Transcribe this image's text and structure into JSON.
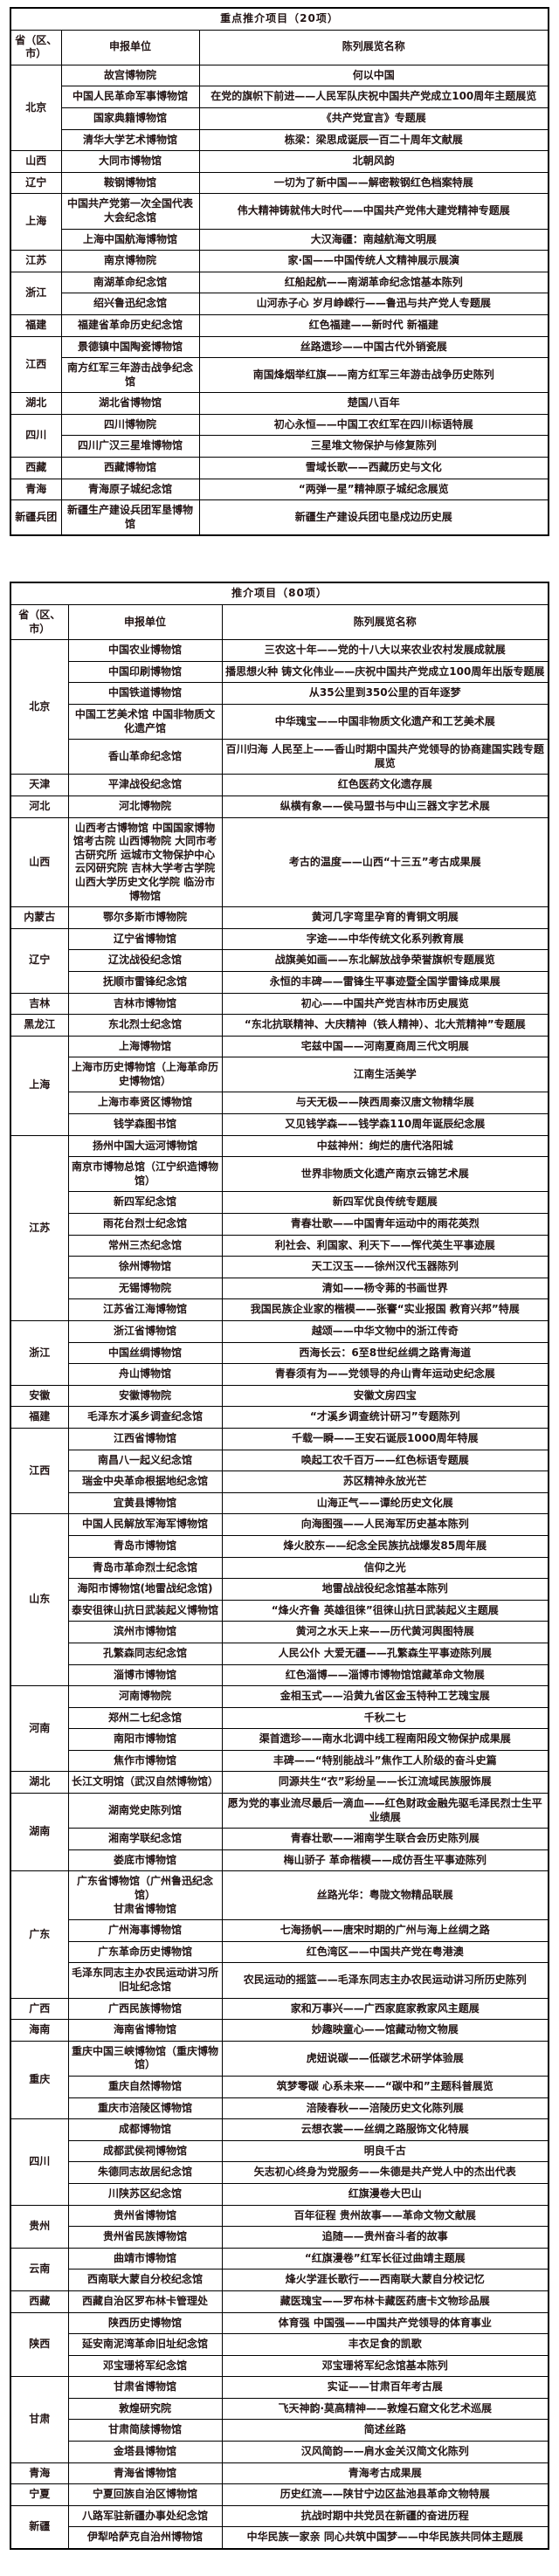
{
  "doc": {
    "text_color": "#221414",
    "title_color": "#c00000",
    "border_color": "#000000",
    "background": "#ffffff"
  },
  "tables": [
    {
      "id": "key-projects",
      "title": "重点推介项目（20项）",
      "headers": [
        "省（区、市）",
        "申报单位",
        "陈列展览名称"
      ],
      "groups": [
        {
          "province": "北京",
          "rows": [
            [
              "故宫博物院",
              "何以中国"
            ],
            [
              "中国人民革命军事博物馆",
              "在党的旗帜下前进——人民军队庆祝中国共产党成立100周年主题展览"
            ],
            [
              "国家典籍博物馆",
              "《共产党宣言》专题展"
            ],
            [
              "清华大学艺术博物馆",
              "栋梁：梁思成诞辰一百二十周年文献展"
            ]
          ]
        },
        {
          "province": "山西",
          "rows": [
            [
              "大同市博物馆",
              "北朝风韵"
            ]
          ]
        },
        {
          "province": "辽宁",
          "rows": [
            [
              "鞍钢博物馆",
              "一切为了新中国——解密鞍钢红色档案特展"
            ]
          ]
        },
        {
          "province": "上海",
          "rows": [
            [
              "中国共产党第一次全国代表大会纪念馆",
              "伟大精神铸就伟大时代——中国共产党伟大建党精神专题展"
            ],
            [
              "上海中国航海博物馆",
              "大汉海疆：南越航海文明展"
            ]
          ]
        },
        {
          "province": "江苏",
          "rows": [
            [
              "南京博物院",
              "家·国——中国传统人文精神展示展演"
            ]
          ]
        },
        {
          "province": "浙江",
          "rows": [
            [
              "南湖革命纪念馆",
              "红船起航——南湖革命纪念馆基本陈列"
            ],
            [
              "绍兴鲁迅纪念馆",
              "山河赤子心 岁月峥嵘行——鲁迅与共产党人专题展"
            ]
          ]
        },
        {
          "province": "福建",
          "rows": [
            [
              "福建省革命历史纪念馆",
              "红色福建——新时代 新福建"
            ]
          ]
        },
        {
          "province": "江西",
          "rows": [
            [
              "景德镇中国陶瓷博物馆",
              "丝路遗珍——中国古代外销瓷展"
            ],
            [
              "南方红军三年游击战争纪念馆",
              "南国烽烟举红旗——南方红军三年游击战争历史陈列"
            ]
          ]
        },
        {
          "province": "湖北",
          "rows": [
            [
              "湖北省博物馆",
              "楚国八百年"
            ]
          ]
        },
        {
          "province": "四川",
          "rows": [
            [
              "四川博物院",
              "初心永恒——中国工农红军在四川标语特展"
            ],
            [
              "四川广汉三星堆博物馆",
              "三星堆文物保护与修复陈列"
            ]
          ]
        },
        {
          "province": "西藏",
          "rows": [
            [
              "西藏博物馆",
              "雪域长歌——西藏历史与文化"
            ]
          ]
        },
        {
          "province": "青海",
          "rows": [
            [
              "青海原子城纪念馆",
              "“两弹一星”精神原子城纪念展览"
            ]
          ]
        },
        {
          "province": "新疆兵团",
          "rows": [
            [
              "新疆生产建设兵团军垦博物馆",
              "新疆生产建设兵团屯垦戍边历史展"
            ]
          ]
        }
      ]
    },
    {
      "id": "recommended-projects",
      "title": "推介项目（80项）",
      "headers": [
        "省（区、市）",
        "申报单位",
        "陈列展览名称"
      ],
      "groups": [
        {
          "province": "北京",
          "rows": [
            [
              "中国农业博物馆",
              "三农这十年——党的十八大以来农业农村发展成就展"
            ],
            [
              "中国印刷博物馆",
              "播思想火种 铸文化伟业——庆祝中国共产党成立100周年出版专题展"
            ],
            [
              "中国铁道博物馆",
              "从35公里到350公里的百年逐梦"
            ],
            [
              "中国工艺美术馆 中国非物质文化遗产馆",
              "中华瑰宝——中国非物质文化遗产和工艺美术展"
            ],
            [
              "香山革命纪念馆",
              "百川归海 人民至上——香山时期中国共产党领导的协商建国实践专题展览"
            ]
          ]
        },
        {
          "province": "天津",
          "rows": [
            [
              "平津战役纪念馆",
              "红色医药文化遗存展"
            ]
          ]
        },
        {
          "province": "河北",
          "rows": [
            [
              "河北博物院",
              "纵横有象——侯马盟书与中山三器文字艺术展"
            ]
          ]
        },
        {
          "province": "山西",
          "rows": [
            [
              "山西考古博物馆 中国国家博物馆考古院 山西博物院 大同市考古研究所 运城市文物保护中心 云冈研究院 吉林大学考古学院 山西大学历史文化学院 临汾市博物馆",
              "考古的温度——山西“十三五”考古成果展"
            ]
          ]
        },
        {
          "province": "内蒙古",
          "rows": [
            [
              "鄂尔多斯市博物院",
              "黄河几字弯里孕育的青铜文明展"
            ]
          ]
        },
        {
          "province": "辽宁",
          "rows": [
            [
              "辽宁省博物馆",
              "字途——中华传统文化系列教育展"
            ],
            [
              "辽沈战役纪念馆",
              "战旗美如画——东北解放战争荣誉旗帜专题展览"
            ],
            [
              "抚顺市雷锋纪念馆",
              "永恒的丰碑——雷锋生平事迹暨全国学雷锋成果展"
            ]
          ]
        },
        {
          "province": "吉林",
          "rows": [
            [
              "吉林市博物馆",
              "初心——中国共产党吉林市历史展览"
            ]
          ]
        },
        {
          "province": "黑龙江",
          "rows": [
            [
              "东北烈士纪念馆",
              "“东北抗联精神、大庆精神（铁人精神）、北大荒精神”专题展"
            ]
          ]
        },
        {
          "province": "上海",
          "rows": [
            [
              "上海博物馆",
              "宅兹中国——河南夏商周三代文明展"
            ],
            [
              "上海市历史博物馆（上海革命历史博物馆）",
              "江南生活美学"
            ],
            [
              "上海市奉贤区博物馆",
              "与天无极——陕西周秦汉唐文物精华展"
            ],
            [
              "钱学森图书馆",
              "又见钱学森——钱学森110周年诞辰纪念展"
            ]
          ]
        },
        {
          "province": "江苏",
          "rows": [
            [
              "扬州中国大运河博物馆",
              "中兹神州：绚烂的唐代洛阳城"
            ],
            [
              "南京市博物总馆（江宁织造博物馆）",
              "世界非物质文化遗产南京云锦艺术展"
            ],
            [
              "新四军纪念馆",
              "新四军优良传统专题展"
            ],
            [
              "雨花台烈士纪念馆",
              "青春壮歌——中国青年运动中的雨花英烈"
            ],
            [
              "常州三杰纪念馆",
              "利社会、利国家、利天下——恽代英生平事迹展"
            ],
            [
              "徐州博物馆",
              "天工汉玉——徐州汉代玉器陈列"
            ],
            [
              "无锡博物院",
              "清如——杨令茀的书画世界"
            ],
            [
              "江苏省江海博物馆",
              "我国民族企业家的楷模——张謇“实业报国 教育兴邦”特展"
            ]
          ]
        },
        {
          "province": "浙江",
          "rows": [
            [
              "浙江省博物馆",
              "越颂——中华文物中的浙江传奇"
            ],
            [
              "中国丝绸博物馆",
              "西海长云：6至8世纪丝绸之路青海道"
            ],
            [
              "舟山博物馆",
              "青春须有为——党领导的舟山青年运动史纪念展"
            ]
          ]
        },
        {
          "province": "安徽",
          "rows": [
            [
              "安徽博物院",
              "安徽文房四宝"
            ]
          ]
        },
        {
          "province": "福建",
          "rows": [
            [
              "毛泽东才溪乡调查纪念馆",
              "“才溪乡调查统计研习”专题陈列"
            ]
          ]
        },
        {
          "province": "江西",
          "rows": [
            [
              "江西省博物馆",
              "千载一瞬——王安石诞辰1000周年特展"
            ],
            [
              "南昌八一起义纪念馆",
              "唤起工农千百万——红色标语专题展"
            ],
            [
              "瑞金中央革命根据地纪念馆",
              "苏区精神永放光芒"
            ],
            [
              "宜黄县博物馆",
              "山海正气——谭纶历史文化展"
            ]
          ]
        },
        {
          "province": "山东",
          "rows": [
            [
              "中国人民解放军海军博物馆",
              "向海图强——人民海军历史基本陈列"
            ],
            [
              "青岛市博物馆",
              "烽火胶东——纪念全民族抗战爆发85周年展"
            ],
            [
              "青岛市革命烈士纪念馆",
              "信仰之光"
            ],
            [
              "海阳市博物馆(地雷战纪念馆)",
              "地雷战战役纪念馆基本陈列"
            ],
            [
              "泰安徂徕山抗日武装起义博物馆",
              "“烽火齐鲁 英雄徂徕”徂徕山抗日武装起义主题展"
            ],
            [
              "滨州市博物馆",
              "黄河之水天上来——历代黄河舆图特展"
            ],
            [
              "孔繁森同志纪念馆",
              "人民公仆 大爱无疆——孔繁森生平事迹陈列展"
            ],
            [
              "淄博市博物馆",
              "红色淄博——淄博市博物馆馆藏革命文物展"
            ]
          ]
        },
        {
          "province": "河南",
          "rows": [
            [
              "河南博物院",
              "金相玉式——沿黄九省区金玉特种工艺瑰宝展"
            ],
            [
              "郑州二七纪念馆",
              "千秋二七"
            ],
            [
              "南阳市博物馆",
              "渠首遗珍——南水北调中线工程南阳段文物保护成果展"
            ],
            [
              "焦作市博物馆",
              "丰碑——“特别能战斗”焦作工人阶级的奋斗史篇"
            ]
          ]
        },
        {
          "province": "湖北",
          "rows": [
            [
              "长江文明馆（武汉自然博物馆）",
              "同源共生“衣”彩纷呈——长江流域民族服饰展"
            ]
          ]
        },
        {
          "province": "湖南",
          "rows": [
            [
              "湖南党史陈列馆",
              "愿为党的事业流尽最后一滴血——红色财政金融先驱毛泽民烈士生平业绩展"
            ],
            [
              "湘南学联纪念馆",
              "青春壮歌——湘南学生联合会历史陈列展"
            ],
            [
              "娄底市博物馆",
              "梅山骄子 革命楷模——成仿吾生平事迹陈列"
            ]
          ]
        },
        {
          "province": "广东",
          "rows": [
            [
              "广东省博物馆（广州鲁迅纪念馆）\n甘肃省博物馆",
              "丝路光华：粤陇文物精品联展"
            ],
            [
              "广州海事博物馆",
              "七海扬帆——唐宋时期的广州与海上丝绸之路"
            ],
            [
              "广东革命历史博物馆",
              "红色湾区——中国共产党在粤港澳"
            ],
            [
              "毛泽东同志主办农民运动讲习所旧址纪念馆",
              "农民运动的摇篮——毛泽东同志主办农民运动讲习所历史陈列"
            ]
          ]
        },
        {
          "province": "广西",
          "rows": [
            [
              "广西民族博物馆",
              "家和万事兴——广西家庭家教家风主题展"
            ]
          ]
        },
        {
          "province": "海南",
          "rows": [
            [
              "海南省博物馆",
              "妙趣映童心——馆藏动物文物展"
            ]
          ]
        },
        {
          "province": "重庆",
          "rows": [
            [
              "重庆中国三峡博物馆（重庆博物馆）",
              "虎妞说碳——低碳艺术研学体验展"
            ],
            [
              "重庆自然博物馆",
              "筑梦零碳 心系未来——“碳中和”主题科普展览"
            ],
            [
              "重庆市涪陵区博物馆",
              "涪陵春秋——涪陵历史文化陈列展"
            ]
          ]
        },
        {
          "province": "四川",
          "rows": [
            [
              "成都博物馆",
              "云想衣裳——丝绸之路服饰文化特展"
            ],
            [
              "成都武侯祠博物馆",
              "明良千古"
            ],
            [
              "朱德同志故居纪念馆",
              "矢志初心终身为党服务——朱德是共产党人中的杰出代表"
            ],
            [
              "川陕苏区纪念馆",
              "红旗漫卷大巴山"
            ]
          ]
        },
        {
          "province": "贵州",
          "rows": [
            [
              "贵州省博物馆",
              "百年征程 贵州故事——革命文物文献展"
            ],
            [
              "贵州省民族博物馆",
              "追随——贵州奋斗者的故事"
            ]
          ]
        },
        {
          "province": "云南",
          "rows": [
            [
              "曲靖市博物馆",
              "“红旗漫卷”红军长征过曲靖主题展"
            ],
            [
              "西南联大蒙自分校纪念馆",
              "烽火学涯长歌行——西南联大蒙自分校记忆"
            ]
          ]
        },
        {
          "province": "西藏",
          "rows": [
            [
              "西藏自治区罗布林卡管理处",
              "藏医瑰宝——罗布林卡藏医药唐卡文物珍品展"
            ]
          ]
        },
        {
          "province": "陕西",
          "rows": [
            [
              "陕西历史博物馆",
              "体育强 中国强——中国共产党领导的体育事业"
            ],
            [
              "延安南泥湾革命旧址纪念馆",
              "丰衣足食的凯歌"
            ],
            [
              "邓宝珊将军纪念馆",
              "邓宝珊将军纪念馆基本陈列"
            ]
          ]
        },
        {
          "province": "甘肃",
          "rows": [
            [
              "甘肃省博物馆",
              "实证——甘肃百年考古展"
            ],
            [
              "敦煌研究院",
              "飞天神韵·莫高精神——敦煌石窟文化艺术巡展"
            ],
            [
              "甘肃简牍博物馆",
              "简述丝路"
            ],
            [
              "金塔县博物馆",
              "汉风简韵——肩水金关汉简文化陈列"
            ]
          ]
        },
        {
          "province": "青海",
          "rows": [
            [
              "青海省博物馆",
              "青海考古成果展"
            ]
          ]
        },
        {
          "province": "宁夏",
          "rows": [
            [
              "宁夏回族自治区博物馆",
              "历史红流——陕甘宁边区盐池县革命文物特展"
            ]
          ]
        },
        {
          "province": "新疆",
          "rows": [
            [
              "八路军驻新疆办事处纪念馆",
              "抗战时期中共党员在新疆的奋进历程"
            ],
            [
              "伊犁哈萨克自治州博物馆",
              "中华民族一家亲 同心共筑中国梦——中华民族共同体主题展"
            ]
          ]
        }
      ]
    }
  ]
}
